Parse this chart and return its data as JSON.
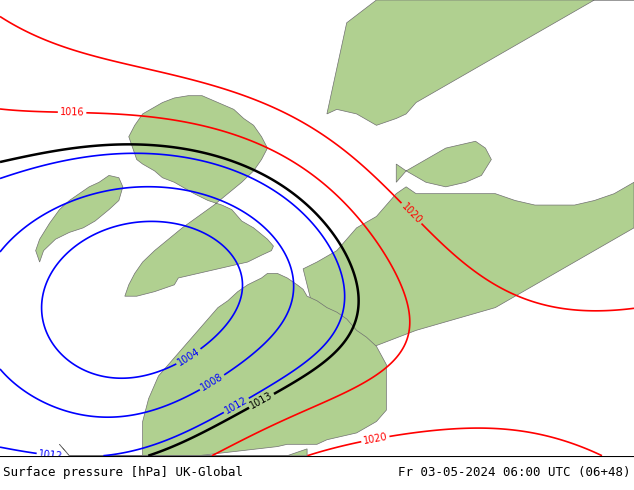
{
  "title_left": "Surface pressure [hPa] UK-Global",
  "title_right": "Fr 03-05-2024 06:00 UTC (06+48)",
  "bg_color": "#d0d0d0",
  "land_color": "#b0d090",
  "coast_color": "#707070",
  "font_size_title": 9,
  "fig_width": 6.34,
  "fig_height": 4.9,
  "dpi": 100,
  "lon_min": -12,
  "lon_max": 20,
  "lat_min": 43,
  "lat_max": 63
}
